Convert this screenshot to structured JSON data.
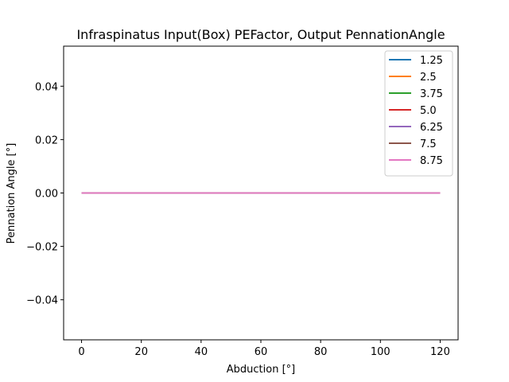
{
  "chart_data": {
    "type": "line",
    "title": "Infraspinatus Input(Box) PEFactor, Output PennationAngle",
    "xlabel": "Abduction [°]",
    "ylabel": "Pennation Angle [°]",
    "xlim": [
      -6,
      126
    ],
    "ylim": [
      -0.055,
      0.055
    ],
    "xticks": [
      0,
      20,
      40,
      60,
      80,
      100,
      120
    ],
    "xtick_labels": [
      "0",
      "20",
      "40",
      "60",
      "80",
      "100",
      "120"
    ],
    "yticks": [
      -0.04,
      -0.02,
      0.0,
      0.02,
      0.04
    ],
    "ytick_labels": [
      "−0.04",
      "−0.02",
      "0.00",
      "0.02",
      "0.04"
    ],
    "grid": false,
    "legend_position": "top-right",
    "x": [
      0,
      120
    ],
    "series": [
      {
        "name": "1.25",
        "color": "#1f77b4",
        "values": [
          0,
          0
        ]
      },
      {
        "name": "2.5",
        "color": "#ff7f0e",
        "values": [
          0,
          0
        ]
      },
      {
        "name": "3.75",
        "color": "#2ca02c",
        "values": [
          0,
          0
        ]
      },
      {
        "name": "5.0",
        "color": "#d62728",
        "values": [
          0,
          0
        ]
      },
      {
        "name": "6.25",
        "color": "#9467bd",
        "values": [
          0,
          0
        ]
      },
      {
        "name": "7.5",
        "color": "#8c564b",
        "values": [
          0,
          0
        ]
      },
      {
        "name": "8.75",
        "color": "#e377c2",
        "values": [
          0,
          0
        ]
      }
    ]
  }
}
